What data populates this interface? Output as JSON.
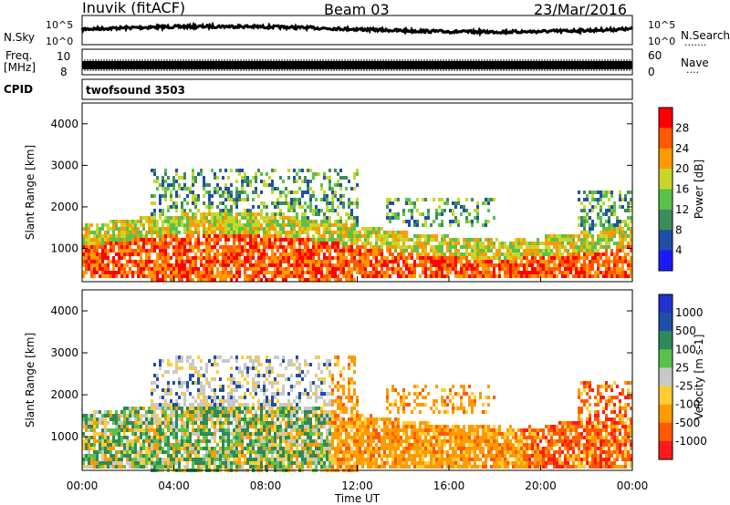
{
  "header": {
    "station": "Inuvik (fitACF)",
    "beam": "Beam 03",
    "date": "23/Mar/2016"
  },
  "panels": {
    "nsky": {
      "label": "N.Sky",
      "tick_top": "10^5",
      "tick_bottom": "10^0",
      "right_label": "N.Search",
      "right_tick_top": "10^5",
      "right_tick_bottom": "10^0"
    },
    "freq": {
      "label_line1": "Freq.",
      "label_line2": "[MHz]",
      "tick_top": "10",
      "tick_bottom": "8",
      "right_label": "Nave",
      "right_tick_top": "60",
      "right_tick_bottom": "0"
    },
    "cpid": {
      "label": "CPID",
      "value": "twofsound 3503"
    }
  },
  "colors": {
    "power": [
      "#1a1aff",
      "#1f4fa8",
      "#3d8c5a",
      "#59c24a",
      "#c8d62a",
      "#ff9a00",
      "#ff5a00",
      "#ff0000"
    ],
    "velocity": [
      "#ff1a1a",
      "#ff5a00",
      "#ff9a00",
      "#ffcc33",
      "#c8c8c8",
      "#59c24a",
      "#2e8b57",
      "#1f4fa8",
      "#2233cc"
    ]
  },
  "chart_data": [
    {
      "type": "heatmap",
      "quantity": "Power",
      "ylabel": "Slant Range [km]",
      "ylim": [
        200,
        4500
      ],
      "yticks": [
        "1000",
        "2000",
        "3000",
        "4000"
      ],
      "colorbar": {
        "label": "Power [dB]",
        "ticks": [
          "4",
          "8",
          "12",
          "16",
          "20",
          "24",
          "28"
        ]
      }
    },
    {
      "type": "heatmap",
      "quantity": "Velocity",
      "xlabel": "Time UT",
      "ylabel": "Slant Range [km]",
      "ylim": [
        200,
        4500
      ],
      "xticks": [
        "00:00",
        "04:00",
        "08:00",
        "12:00",
        "16:00",
        "20:00",
        "00:00"
      ],
      "yticks": [
        "1000",
        "2000",
        "3000",
        "4000"
      ],
      "colorbar": {
        "label": "Velocity [m s-1]",
        "ticks": [
          "1000",
          "500",
          "100",
          "25",
          "-25",
          "-100",
          "-500",
          "-1000"
        ]
      }
    }
  ]
}
